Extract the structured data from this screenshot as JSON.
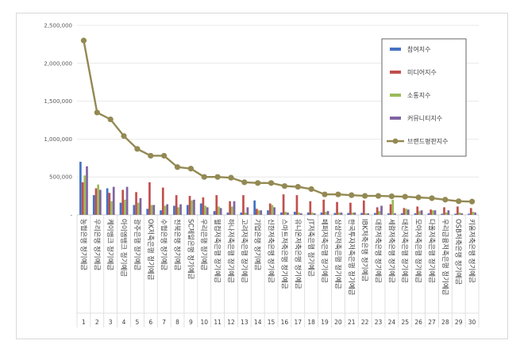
{
  "chart_data": {
    "type": "bar",
    "title": "",
    "xlabel": "",
    "ylabel": "",
    "ylim": [
      0,
      2500000
    ],
    "yticks": [
      0,
      500000,
      1000000,
      1500000,
      2000000,
      2500000
    ],
    "ytick_labels": [
      "-",
      "500,000",
      "1,000,000",
      "1,500,000",
      "2,000,000",
      "2,500,000"
    ],
    "grid": true,
    "legend_position": "right",
    "categories": [
      "농협은행 정기예금",
      "우리은행 정기예금",
      "케이뱅크 정기예금",
      "아이엠뱅크 정기예금",
      "광주은행 정기예금",
      "OK저축은행 정기예금",
      "수협은행 정기예금",
      "전북은행 정기예금",
      "SC제일은행 정기예금",
      "우리은행 정기예금",
      "웰컴저축은행 정기예금",
      "하나저축은행 정기예금",
      "고려저축은행 정기예금",
      "기업은행 정기예금",
      "신한저축은행 정기예금",
      "스마트저축은행 정기예금",
      "유니온저축은행 정기예금",
      "JT저축은행 정기예금",
      "페퍼저축은행 정기예금",
      "상상인저축은행 정기예금",
      "한국투자저축은행 정기예금",
      "IBK저축은행 정기예금",
      "대한저축은행 정기예금",
      "세람저축은행 정기예금",
      "대신저축은행 정기예금",
      "모아저축은행 정기예금",
      "다올저축은행 정기예금",
      "우리금융저축은행 정기예금",
      "OSB저축은행 정기예금",
      "키움저축은행 정기예금"
    ],
    "index_labels": [
      "1",
      "2",
      "3",
      "4",
      "5",
      "6",
      "7",
      "8",
      "9",
      "10",
      "11",
      "12",
      "13",
      "14",
      "15",
      "16",
      "17",
      "18",
      "19",
      "20",
      "21",
      "22",
      "23",
      "24",
      "25",
      "26",
      "27",
      "28",
      "29",
      "30"
    ],
    "series": [
      {
        "name": "참여지수",
        "type": "bar",
        "color": "#4472c4",
        "values": [
          700000,
          260000,
          350000,
          160000,
          130000,
          80000,
          60000,
          120000,
          130000,
          150000,
          50000,
          30000,
          30000,
          190000,
          60000,
          30000,
          40000,
          30000,
          30000,
          25000,
          25000,
          25000,
          25000,
          20000,
          20000,
          20000,
          20000,
          15000,
          15000,
          15000
        ]
      },
      {
        "name": "미디어지수",
        "type": "bar",
        "color": "#c0504d",
        "values": [
          430000,
          350000,
          290000,
          330000,
          300000,
          430000,
          360000,
          260000,
          250000,
          230000,
          260000,
          180000,
          260000,
          80000,
          150000,
          270000,
          260000,
          180000,
          200000,
          170000,
          160000,
          190000,
          100000,
          140000,
          90000,
          110000,
          70000,
          100000,
          110000,
          90000
        ]
      },
      {
        "name": "소통지수",
        "type": "bar",
        "color": "#9bbb59",
        "values": [
          520000,
          400000,
          180000,
          200000,
          160000,
          130000,
          120000,
          100000,
          190000,
          120000,
          110000,
          110000,
          30000,
          60000,
          130000,
          40000,
          30000,
          30000,
          40000,
          30000,
          30000,
          20000,
          50000,
          200000,
          80000,
          50000,
          60000,
          30000,
          30000,
          40000
        ]
      },
      {
        "name": "커뮤니티지수",
        "type": "bar",
        "color": "#8064a2",
        "values": [
          640000,
          330000,
          370000,
          370000,
          220000,
          130000,
          140000,
          140000,
          200000,
          100000,
          90000,
          180000,
          100000,
          60000,
          100000,
          30000,
          20000,
          20000,
          50000,
          30000,
          30000,
          20000,
          120000,
          20000,
          70000,
          60000,
          60000,
          60000,
          20000,
          30000
        ]
      },
      {
        "name": "브랜드평판지수",
        "type": "line",
        "color": "#938953",
        "values": [
          2300000,
          1350000,
          1260000,
          1040000,
          870000,
          780000,
          780000,
          630000,
          610000,
          500000,
          500000,
          490000,
          430000,
          420000,
          420000,
          380000,
          370000,
          340000,
          270000,
          270000,
          260000,
          250000,
          250000,
          245000,
          240000,
          230000,
          220000,
          200000,
          180000,
          175000
        ]
      }
    ]
  }
}
